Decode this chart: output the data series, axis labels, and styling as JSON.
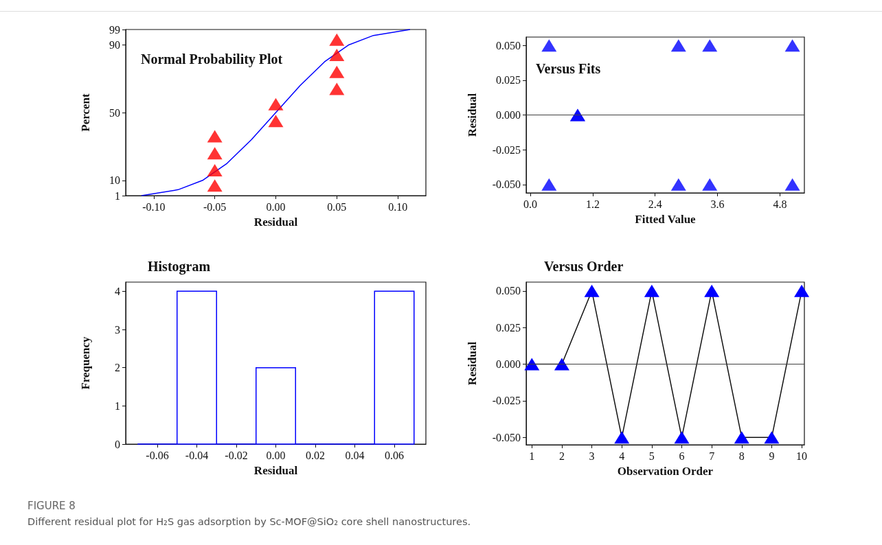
{
  "chart_data": [
    {
      "type": "scatter",
      "title": "Normal Probability Plot",
      "xlabel": "Residual",
      "ylabel": "Percent",
      "marker": "triangle",
      "xlim": [
        -0.123,
        0.123
      ],
      "xticks": [
        {
          "value": -0.1,
          "label": "-0.10"
        },
        {
          "value": -0.05,
          "label": "-0.05"
        },
        {
          "value": 0,
          "label": "0.00"
        },
        {
          "value": 0.05,
          "label": "0.05"
        },
        {
          "value": 0.1,
          "label": "0.10"
        }
      ],
      "ylim": [
        1,
        99
      ],
      "yticks": [
        1,
        10,
        50,
        90,
        99
      ],
      "series": [
        {
          "type": "scatter",
          "color": "#ff0000",
          "x": [
            -0.05,
            -0.05,
            -0.05,
            -0.05,
            0,
            0,
            0.05,
            0.05,
            0.05,
            0.05
          ],
          "values": [
            7,
            16,
            26,
            36,
            45,
            55,
            64,
            74,
            84,
            93
          ]
        },
        {
          "type": "line",
          "color": "#0000ff",
          "marker": "none",
          "x": [
            -0.11,
            -0.08,
            -0.06,
            -0.04,
            -0.02,
            0,
            0.02,
            0.04,
            0.06,
            0.08,
            0.11
          ],
          "values": [
            1,
            4.5,
            10,
            20,
            34,
            50,
            66,
            80,
            90,
            95.5,
            99
          ]
        }
      ]
    },
    {
      "type": "scatter",
      "title": "Versus Fits",
      "xlabel": "Fitted Value",
      "ylabel": "Residual",
      "marker": "triangle",
      "xlim": [
        -0.08,
        5.27
      ],
      "xticks": [
        {
          "value": 0,
          "label": "0.0"
        },
        1.2,
        2.4,
        3.6,
        4.8
      ],
      "ylim": [
        -0.056,
        0.056
      ],
      "yticks": [
        {
          "value": -0.05,
          "label": "-0.050"
        },
        {
          "value": -0.025,
          "label": "-0.025"
        },
        {
          "value": 0,
          "label": "0.000"
        },
        {
          "value": 0.025,
          "label": "0.025"
        },
        {
          "value": 0.05,
          "label": "0.050"
        }
      ],
      "ref_lines": [
        {
          "axis": "y",
          "value": 0,
          "color": "#404040"
        }
      ],
      "series": [
        {
          "color": "#0000ff",
          "x": [
            0.36,
            0.36,
            0.91,
            0.91,
            2.85,
            2.85,
            3.45,
            3.45,
            5.04,
            5.04
          ],
          "values": [
            0.05,
            -0.05,
            0,
            0,
            0.05,
            -0.05,
            0.05,
            -0.05,
            0.05,
            -0.05
          ]
        }
      ]
    },
    {
      "type": "histogram",
      "title": "Histogram",
      "xlabel": "Residual",
      "ylabel": "Frequency",
      "color": "#0000ff",
      "bins": [
        -0.07,
        -0.05,
        -0.03,
        -0.01,
        0.01,
        0.03,
        0.05,
        0.07
      ],
      "values": [
        0,
        4,
        0,
        2,
        0,
        0,
        4
      ],
      "xlim": [
        -0.076,
        0.076
      ],
      "xticks": [
        -0.06,
        -0.04,
        -0.02,
        {
          "value": 0,
          "label": "0.00"
        },
        0.02,
        0.04,
        0.06
      ],
      "ylim": [
        0,
        4.24
      ],
      "yticks": [
        0,
        1,
        2,
        3,
        4
      ]
    },
    {
      "type": "line",
      "title": "Versus Order",
      "xlabel": "Observation Order",
      "ylabel": "Residual",
      "marker": "triangle",
      "xlim": [
        0.81,
        10.09
      ],
      "xticks": [
        1,
        2,
        3,
        4,
        5,
        6,
        7,
        8,
        9,
        10
      ],
      "ylim": [
        -0.055,
        0.056
      ],
      "yticks": [
        {
          "value": -0.05,
          "label": "-0.050"
        },
        {
          "value": -0.025,
          "label": "-0.025"
        },
        {
          "value": 0,
          "label": "0.000"
        },
        {
          "value": 0.025,
          "label": "0.025"
        },
        {
          "value": 0.05,
          "label": "0.050"
        }
      ],
      "ref_lines": [
        {
          "axis": "y",
          "value": 0,
          "color": "#404040"
        }
      ],
      "series": [
        {
          "color": "#0000ff",
          "x": [
            1,
            2,
            3,
            4,
            5,
            6,
            7,
            8,
            9,
            10
          ],
          "values": [
            0,
            0,
            0.05,
            -0.05,
            0.05,
            -0.05,
            0.05,
            -0.05,
            -0.05,
            0.05
          ]
        }
      ],
      "annotations": [
        "FIGURE 8",
        "Different residual plot for H₂S gas adsorption by Sc-MOF@SiO₂ core shell nanostructures."
      ]
    }
  ]
}
